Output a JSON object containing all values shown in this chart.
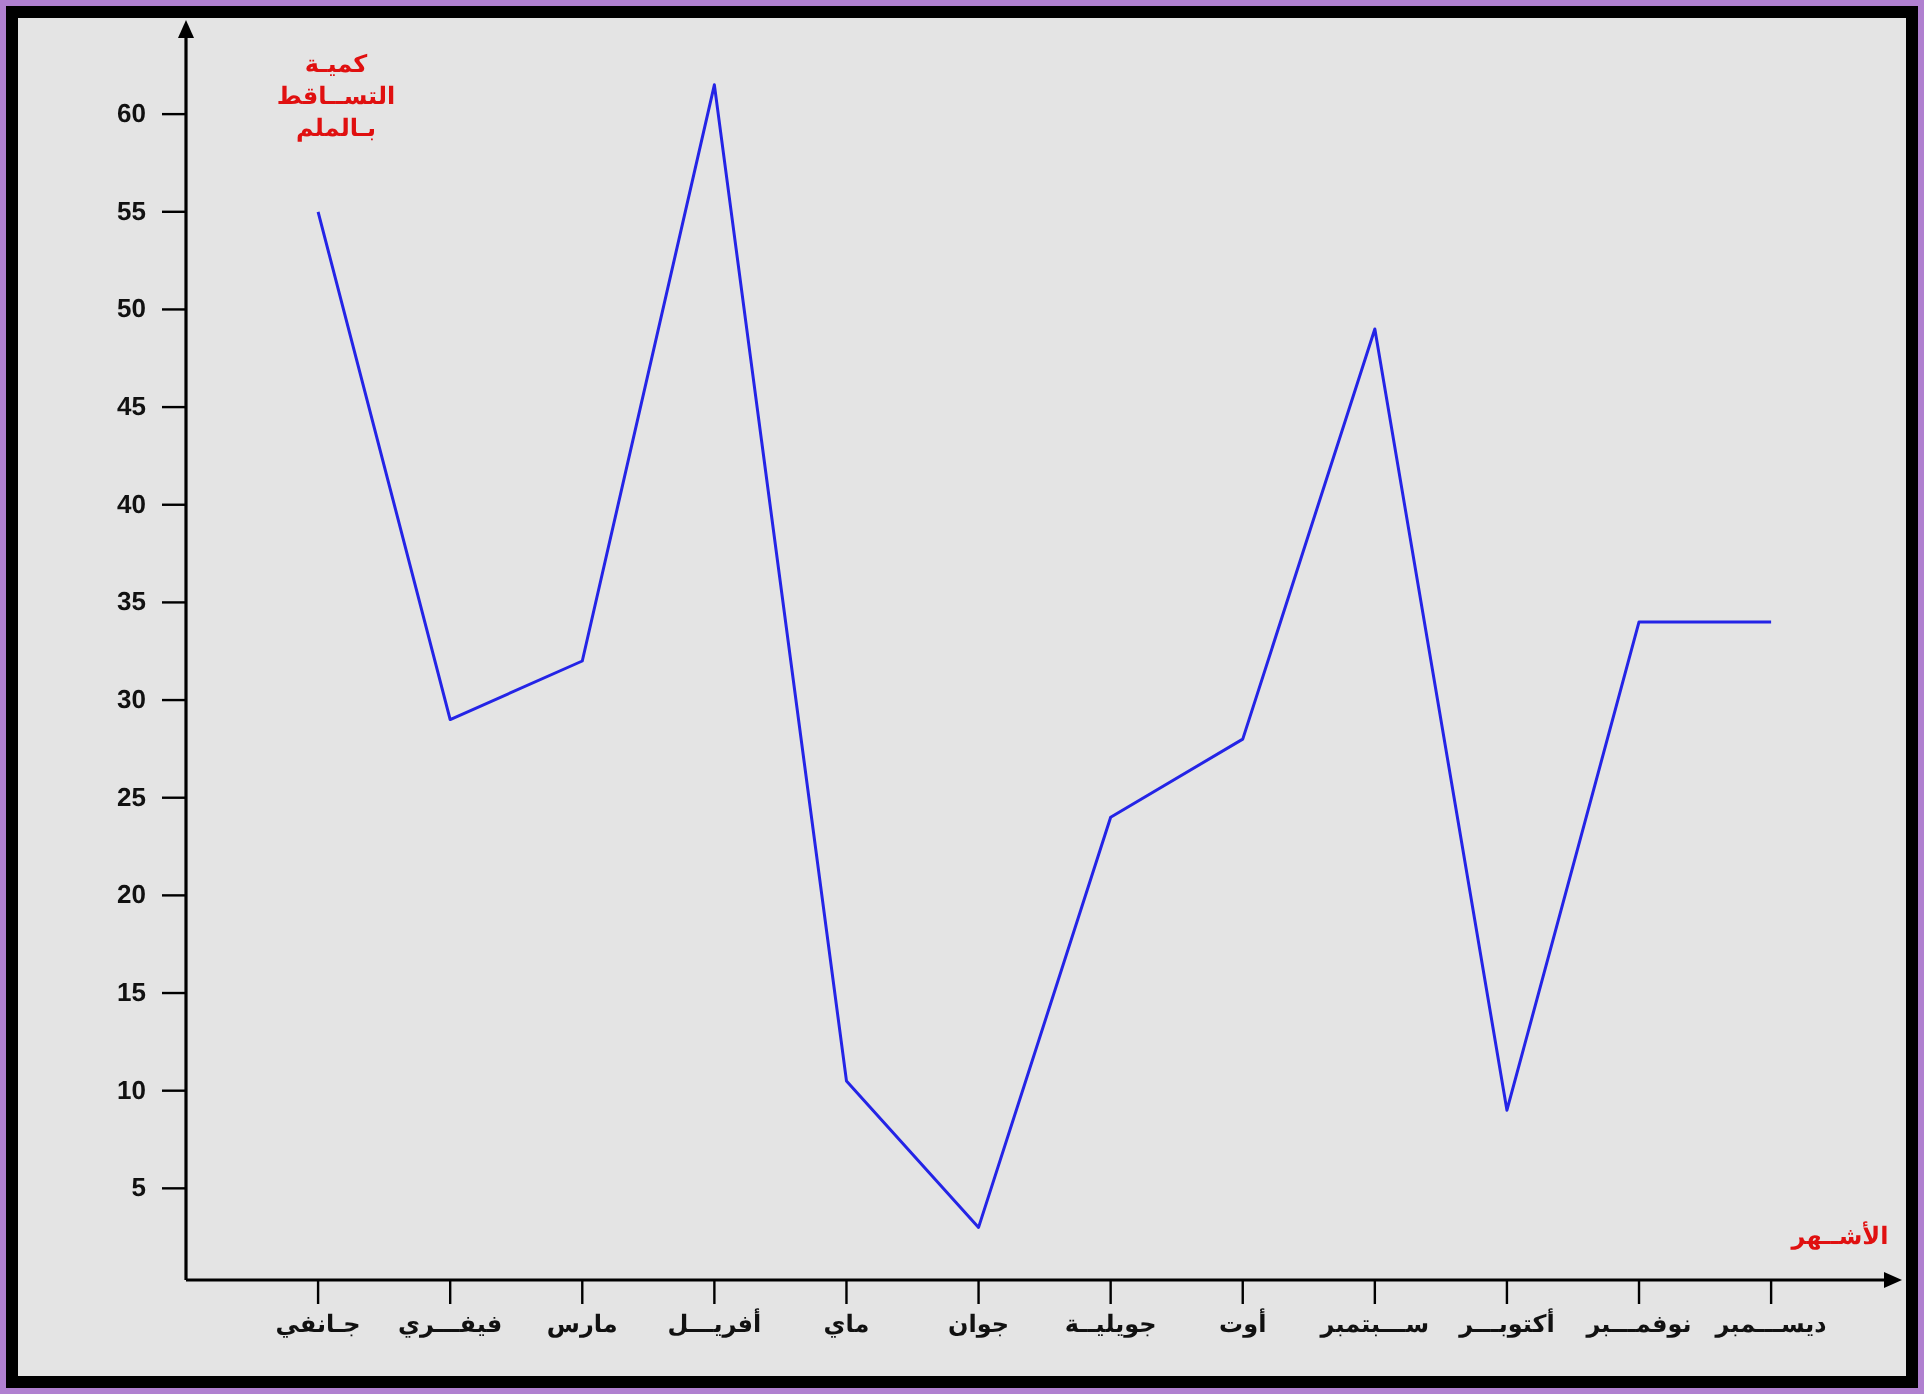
{
  "chart_data": {
    "type": "line",
    "xlabel": "الأشــهر",
    "ylabel": "كميـة التســاقط بـالملم",
    "categories": [
      "جـانفي",
      "فيفـــري",
      "مارس",
      "أفريـــل",
      "ماي",
      "جوان",
      "جويليــة",
      "أوت",
      "ســـبتمبر",
      "أكتوبـــر",
      "نوفمـــبر",
      "ديســـمبر"
    ],
    "values": [
      55,
      29,
      32,
      61.5,
      10.5,
      3,
      24,
      28,
      49,
      9,
      34,
      34
    ],
    "color": "#2424e6",
    "ylim": [
      0,
      64
    ],
    "yticks": [
      5,
      10,
      15,
      20,
      25,
      30,
      35,
      40,
      45,
      50,
      55,
      60
    ],
    "grid": false,
    "marker": "none",
    "line_style": "solid"
  }
}
